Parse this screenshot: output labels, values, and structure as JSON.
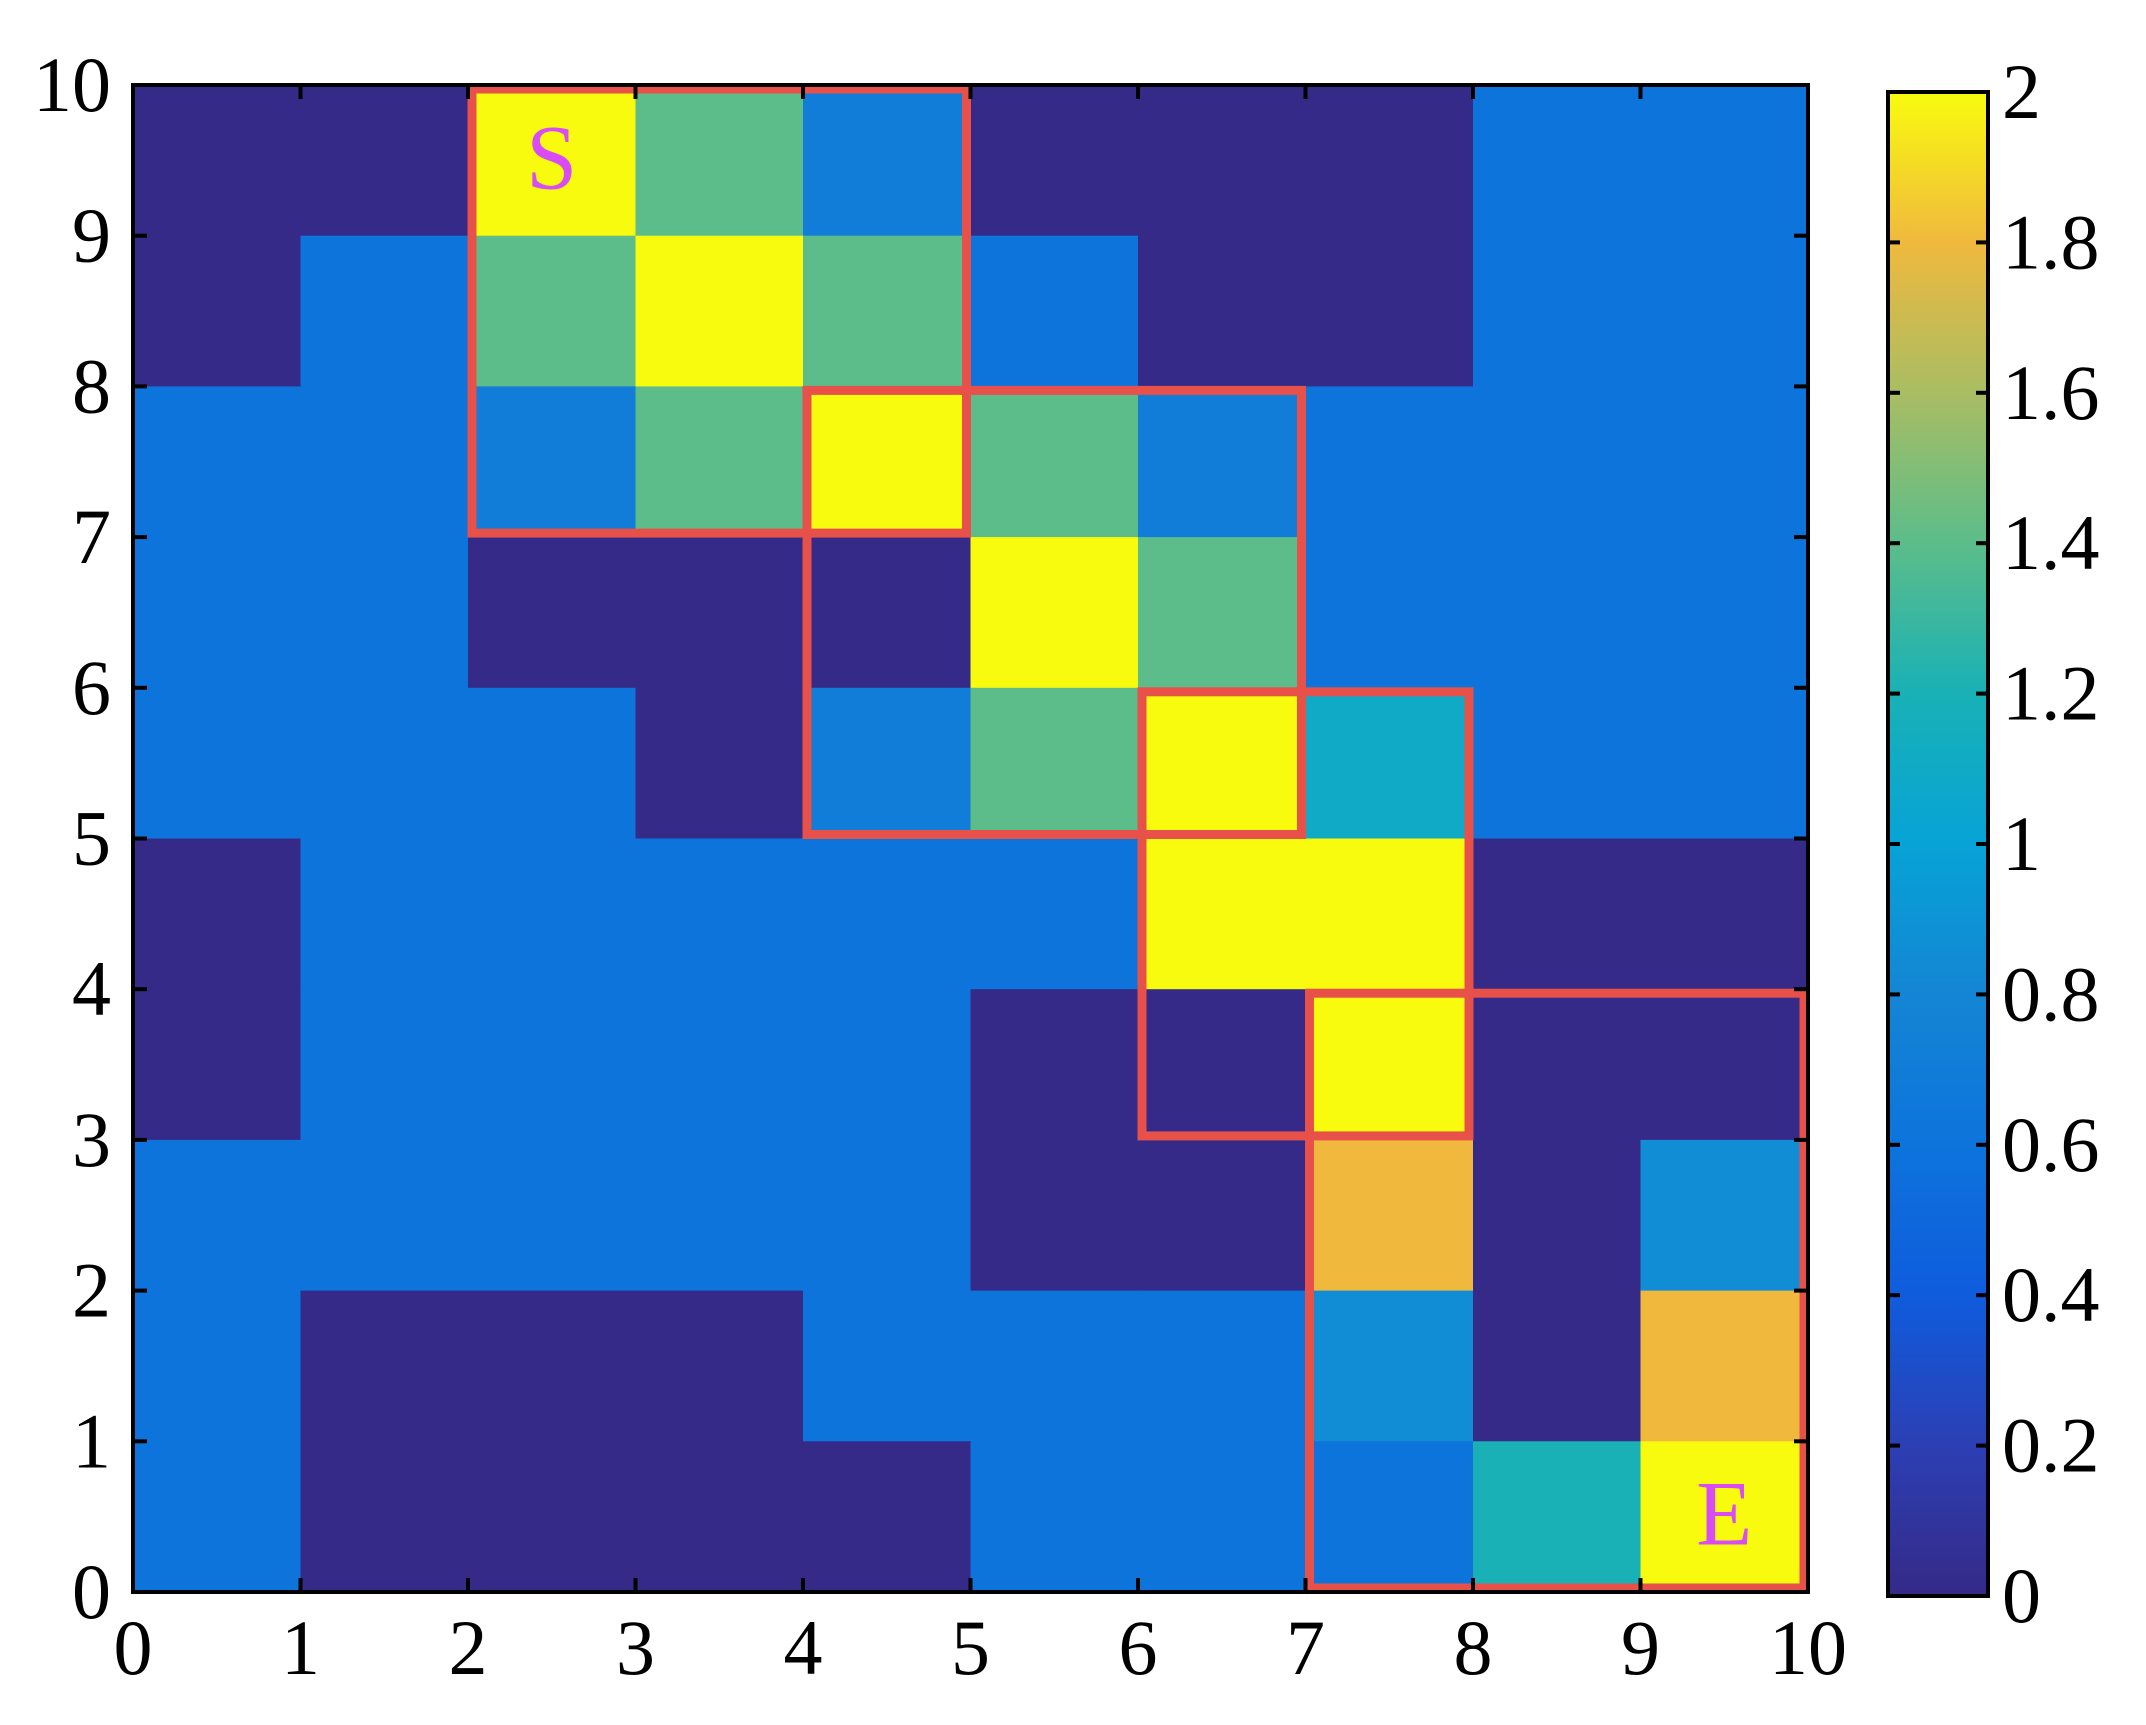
{
  "chart_data": {
    "type": "heatmap",
    "title": "",
    "xlabel": "",
    "ylabel": "",
    "xlim": [
      0,
      10
    ],
    "ylim": [
      0,
      10
    ],
    "x_ticks": [
      "0",
      "1",
      "2",
      "3",
      "4",
      "5",
      "6",
      "7",
      "8",
      "9",
      "10"
    ],
    "y_ticks": [
      "0",
      "1",
      "2",
      "3",
      "4",
      "5",
      "6",
      "7",
      "8",
      "9",
      "10"
    ],
    "colormap": "parula",
    "clim": [
      0,
      2
    ],
    "colorbar_ticks": [
      "0",
      "0.2",
      "0.4",
      "0.6",
      "0.8",
      "1",
      "1.2",
      "1.4",
      "1.6",
      "1.8",
      "2"
    ],
    "grid": false,
    "rows_top_to_bottom": [
      [
        0,
        0,
        2,
        1.4,
        0.7,
        0,
        0,
        0,
        0.6,
        0.6
      ],
      [
        0,
        0.6,
        1.4,
        2,
        1.4,
        0.6,
        0,
        0,
        0.6,
        0.6
      ],
      [
        0.6,
        0.6,
        0.7,
        1.4,
        2,
        1.4,
        0.7,
        0.6,
        0.6,
        0.6
      ],
      [
        0.6,
        0.6,
        0,
        0,
        0,
        2,
        1.4,
        0.6,
        0.6,
        0.6
      ],
      [
        0.6,
        0.6,
        0.6,
        0,
        0.7,
        1.4,
        2,
        1.1,
        0.6,
        0.6
      ],
      [
        0,
        0.6,
        0.6,
        0.6,
        0.6,
        0.6,
        2,
        2,
        0,
        0
      ],
      [
        0,
        0.6,
        0.6,
        0.6,
        0.6,
        0,
        0,
        2,
        0,
        0
      ],
      [
        0.6,
        0.6,
        0.6,
        0.6,
        0.6,
        0,
        0,
        1.8,
        0,
        0.85
      ],
      [
        0.6,
        0,
        0,
        0,
        0.6,
        0.6,
        0.6,
        0.85,
        0,
        1.8
      ],
      [
        0.6,
        0,
        0,
        0,
        0,
        0.6,
        0.6,
        0.6,
        1.2,
        2
      ]
    ],
    "highlight_boxes": [
      {
        "x0": 2,
        "x1": 5,
        "y0": 7,
        "y1": 10
      },
      {
        "x0": 4,
        "x1": 7,
        "y0": 5,
        "y1": 8
      },
      {
        "x0": 6,
        "x1": 8,
        "y0": 3,
        "y1": 6
      },
      {
        "x0": 7,
        "x1": 10,
        "y0": 0,
        "y1": 4
      }
    ],
    "highlight_color": "#e8504a",
    "annotations": [
      {
        "text": "S",
        "x": 2.5,
        "y": 9.5,
        "color": "#d94cf5"
      },
      {
        "text": "E",
        "x": 9.5,
        "y": 0.5,
        "color": "#d94cf5"
      }
    ]
  }
}
